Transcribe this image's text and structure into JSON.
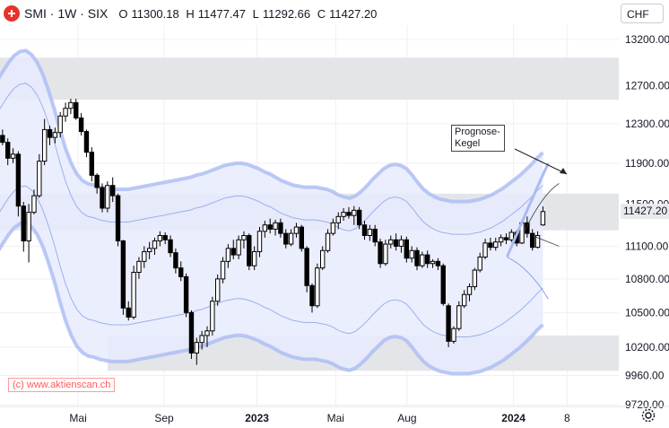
{
  "header": {
    "symbol": "SMI · 1W · SIX",
    "open_label": "O",
    "open": "11300.18",
    "high_label": "H",
    "high": "11477.47",
    "low_label": "L",
    "low": "11292.66",
    "close_label": "C",
    "close": "11427.20",
    "logo_icon": "swiss-cross-logo"
  },
  "currency_selector": {
    "value": "CHF"
  },
  "last_price_label": "11427.20",
  "annotation": {
    "text_line1": "Prognose-",
    "text_line2": "Kegel"
  },
  "watermark": "(c) www.aktienscan.ch",
  "settings_icon": "gear-icon",
  "colors": {
    "up": "#ffffff",
    "down": "#000000",
    "band_fill": "#e8ebfd",
    "band_line": "#aabbf2",
    "zone": "#e3e4e8",
    "watermark": "#ff5a5a"
  },
  "chart_data": {
    "type": "candlestick",
    "title": "SMI · 1W · SIX",
    "y_axis": {
      "ticks": [
        13200,
        12700,
        12300,
        11900,
        11500,
        11100,
        10800,
        10500,
        10200,
        9960,
        9720
      ],
      "tick_labels": [
        "13200.00",
        "12700.00",
        "12300.00",
        "11900.00",
        "11500.00",
        "11100.00",
        "10800.00",
        "10500.00",
        "10200.00",
        "9960.00",
        "9720.00"
      ],
      "scale": "log",
      "range": [
        9700,
        13600
      ]
    },
    "x_axis": {
      "tick_labels": [
        "Mai",
        "Sep",
        "2023",
        "Mai",
        "Aug",
        "2024",
        "8"
      ],
      "bold_labels": [
        "2023",
        "2024"
      ],
      "range": [
        "2022-01-24",
        "2024-03-18"
      ],
      "label_weeks": [
        15.4,
        31.8,
        49.5,
        64.5,
        78.1,
        98.4,
        108.6
      ]
    },
    "grid": true,
    "horizontal_zones": [
      {
        "from": 12550,
        "to": 13000
      },
      {
        "from": 11250,
        "to": 11600
      },
      {
        "from": 10000,
        "to": 10300
      }
    ],
    "candles": [
      [
        12300,
        12350,
        12150,
        12180
      ],
      [
        12180,
        12240,
        12080,
        12110
      ],
      [
        12110,
        12150,
        11880,
        11950
      ],
      [
        11950,
        12050,
        11900,
        11990
      ],
      [
        11990,
        12020,
        11380,
        11480
      ],
      [
        11480,
        11520,
        11050,
        11150
      ],
      [
        11150,
        11500,
        10950,
        11420
      ],
      [
        11420,
        11640,
        11400,
        11580
      ],
      [
        11580,
        11990,
        11560,
        11920
      ],
      [
        11920,
        12350,
        11880,
        12240
      ],
      [
        12240,
        12280,
        12080,
        12160
      ],
      [
        12160,
        12260,
        12100,
        12210
      ],
      [
        12210,
        12420,
        12160,
        12380
      ],
      [
        12380,
        12520,
        12320,
        12460
      ],
      [
        12460,
        12560,
        12400,
        12520
      ],
      [
        12520,
        12560,
        12340,
        12360
      ],
      [
        12360,
        12410,
        12180,
        12220
      ],
      [
        12220,
        12240,
        11960,
        12010
      ],
      [
        12010,
        12060,
        11720,
        11780
      ],
      [
        11780,
        11800,
        11600,
        11660
      ],
      [
        11660,
        11700,
        11420,
        11460
      ],
      [
        11460,
        11720,
        11420,
        11680
      ],
      [
        11680,
        11760,
        11520,
        11580
      ],
      [
        11580,
        11600,
        11100,
        11150
      ],
      [
        11150,
        11160,
        10480,
        10540
      ],
      [
        10540,
        10600,
        10430,
        10460
      ],
      [
        10460,
        10920,
        10440,
        10860
      ],
      [
        10860,
        11000,
        10800,
        10960
      ],
      [
        10960,
        11100,
        10900,
        11050
      ],
      [
        11050,
        11140,
        10980,
        11080
      ],
      [
        11080,
        11180,
        11020,
        11150
      ],
      [
        11150,
        11240,
        11100,
        11200
      ],
      [
        11200,
        11230,
        11120,
        11160
      ],
      [
        11160,
        11200,
        11000,
        11040
      ],
      [
        11040,
        11080,
        10850,
        10900
      ],
      [
        10900,
        10960,
        10780,
        10820
      ],
      [
        10820,
        10850,
        10460,
        10500
      ],
      [
        10500,
        10520,
        10100,
        10150
      ],
      [
        10150,
        10280,
        10050,
        10240
      ],
      [
        10240,
        10340,
        10180,
        10300
      ],
      [
        10300,
        10380,
        10200,
        10340
      ],
      [
        10340,
        10640,
        10300,
        10600
      ],
      [
        10600,
        10840,
        10560,
        10800
      ],
      [
        10800,
        11000,
        10760,
        10960
      ],
      [
        10960,
        11120,
        10900,
        11080
      ],
      [
        11080,
        11160,
        10980,
        11020
      ],
      [
        11020,
        11200,
        10980,
        11160
      ],
      [
        11160,
        11240,
        11080,
        11200
      ],
      [
        11200,
        11220,
        10880,
        10920
      ],
      [
        10920,
        11100,
        10880,
        11050
      ],
      [
        11050,
        11280,
        11000,
        11240
      ],
      [
        11240,
        11340,
        11180,
        11300
      ],
      [
        11300,
        11360,
        11220,
        11260
      ],
      [
        11260,
        11350,
        11200,
        11320
      ],
      [
        11320,
        11360,
        11180,
        11220
      ],
      [
        11220,
        11260,
        11080,
        11120
      ],
      [
        11120,
        11260,
        11100,
        11220
      ],
      [
        11220,
        11320,
        11180,
        11280
      ],
      [
        11280,
        11300,
        11050,
        11080
      ],
      [
        11080,
        11100,
        10680,
        10740
      ],
      [
        10740,
        10760,
        10500,
        10560
      ],
      [
        10560,
        10940,
        10540,
        10900
      ],
      [
        10900,
        11100,
        10880,
        11060
      ],
      [
        11060,
        11260,
        11040,
        11220
      ],
      [
        11220,
        11360,
        11200,
        11320
      ],
      [
        11320,
        11420,
        11260,
        11380
      ],
      [
        11380,
        11460,
        11340,
        11420
      ],
      [
        11420,
        11470,
        11360,
        11390
      ],
      [
        11390,
        11480,
        11300,
        11440
      ],
      [
        11440,
        11470,
        11260,
        11300
      ],
      [
        11300,
        11340,
        11160,
        11200
      ],
      [
        11200,
        11300,
        11150,
        11260
      ],
      [
        11260,
        11300,
        11100,
        11140
      ],
      [
        11140,
        11170,
        10900,
        10940
      ],
      [
        10940,
        11160,
        10920,
        11120
      ],
      [
        11120,
        11200,
        11080,
        11160
      ],
      [
        11160,
        11220,
        11060,
        11100
      ],
      [
        11100,
        11200,
        11040,
        11160
      ],
      [
        11160,
        11190,
        10950,
        10990
      ],
      [
        10990,
        11100,
        10950,
        11060
      ],
      [
        11060,
        11090,
        10880,
        10920
      ],
      [
        10920,
        11050,
        10900,
        11020
      ],
      [
        11020,
        11060,
        10900,
        10940
      ],
      [
        10940,
        10980,
        10900,
        10960
      ],
      [
        10960,
        10990,
        10880,
        10920
      ],
      [
        10920,
        10940,
        10560,
        10580
      ],
      [
        10560,
        10580,
        10200,
        10250
      ],
      [
        10250,
        10380,
        10230,
        10360
      ],
      [
        10360,
        10600,
        10340,
        10560
      ],
      [
        10560,
        10700,
        10540,
        10660
      ],
      [
        10660,
        10760,
        10600,
        10730
      ],
      [
        10730,
        10900,
        10700,
        10880
      ],
      [
        10880,
        11040,
        10860,
        11000
      ],
      [
        11000,
        11170,
        10980,
        11130
      ],
      [
        11130,
        11180,
        11060,
        11090
      ],
      [
        11090,
        11180,
        11060,
        11140
      ],
      [
        11140,
        11210,
        11100,
        11180
      ],
      [
        11180,
        11220,
        11120,
        11160
      ],
      [
        11160,
        11260,
        11140,
        11230
      ],
      [
        11230,
        11250,
        11100,
        11130
      ],
      [
        11130,
        11350,
        11120,
        11320
      ],
      [
        11320,
        11380,
        11180,
        11220
      ],
      [
        11220,
        11260,
        11060,
        11090
      ],
      [
        11090,
        11240,
        11080,
        11200
      ],
      [
        11300,
        11477,
        11292,
        11427
      ]
    ],
    "price_band": {
      "center": [
        11900,
        11990,
        12080,
        12150,
        12190,
        12200,
        12160,
        12080,
        11960,
        11800,
        11620,
        11420,
        11240,
        11100,
        11000,
        10940,
        10910,
        10900,
        10880,
        10870,
        10860,
        10860,
        10860,
        10860,
        10870,
        10880,
        10890,
        10900,
        10910,
        10920,
        10930,
        10940,
        10950,
        10960,
        10970,
        10990,
        11000,
        11020,
        11040,
        11060,
        11080,
        11090,
        11100,
        11100,
        11090,
        11070,
        11050,
        11020,
        11000,
        10970,
        10940,
        10920,
        10900,
        10890,
        10880,
        10880,
        10880,
        10870,
        10860,
        10840,
        10810,
        10790,
        10780,
        10800,
        10840,
        10890,
        10950,
        11000,
        11050,
        11080,
        11090,
        11080,
        11050,
        10990,
        10920,
        10860,
        10820,
        10790,
        10770,
        10760,
        10750,
        10750,
        10750,
        10750,
        10760,
        10770,
        10790,
        10810,
        10840,
        10870,
        10910,
        10950,
        10990,
        11040,
        11090,
        11150,
        11200
      ],
      "inner_width": 0.043,
      "outer_width": 0.072
    },
    "projection_cone": {
      "start": 11000,
      "upper_end": 11900,
      "lower_end": 10620,
      "trend_upper": 11700,
      "trend_lower": 11100
    },
    "last_close": 11427.2
  }
}
